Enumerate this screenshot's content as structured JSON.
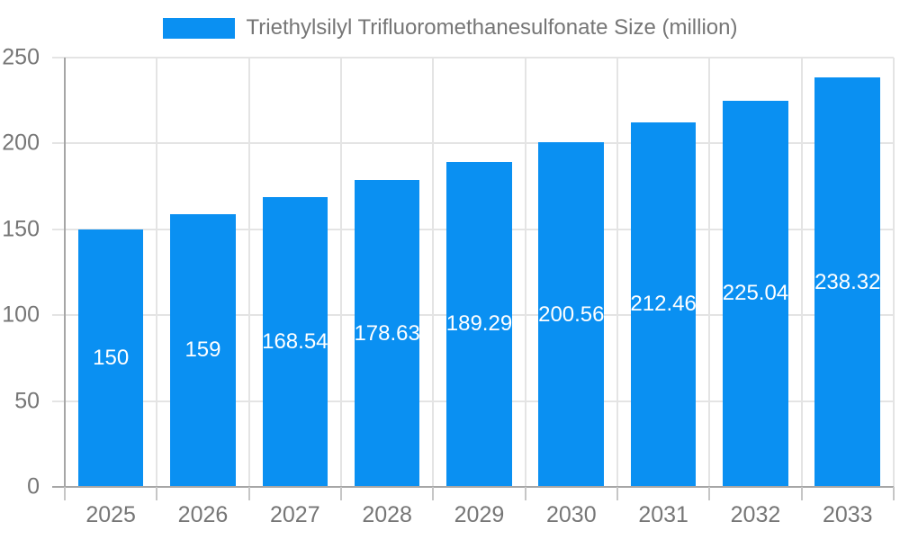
{
  "legend": {
    "label": "Triethylsilyl Trifluoromethanesulfonate Size (million)"
  },
  "colors": {
    "bar": "#0a90f2",
    "axis": "#a6a6a6",
    "grid": "#e4e4e4",
    "tick": "#c6c6c6",
    "text": "#767676",
    "value_text": "#ffffff"
  },
  "chart_data": {
    "type": "bar",
    "title": "Triethylsilyl Trifluoromethanesulfonate Size (million)",
    "categories": [
      "2025",
      "2026",
      "2027",
      "2028",
      "2029",
      "2030",
      "2031",
      "2032",
      "2033"
    ],
    "values": [
      150,
      159,
      168.54,
      178.63,
      189.29,
      200.56,
      212.46,
      225.04,
      238.32
    ],
    "value_labels": [
      "150",
      "159",
      "168.54",
      "178.63",
      "189.29",
      "200.56",
      "212.46",
      "225.04",
      "238.32"
    ],
    "xlabel": "",
    "ylabel": "",
    "ylim": [
      0,
      250
    ],
    "yticks": [
      0,
      50,
      100,
      150,
      200,
      250
    ],
    "grid": true,
    "legend_position": "top",
    "bar_label_position": "center"
  }
}
